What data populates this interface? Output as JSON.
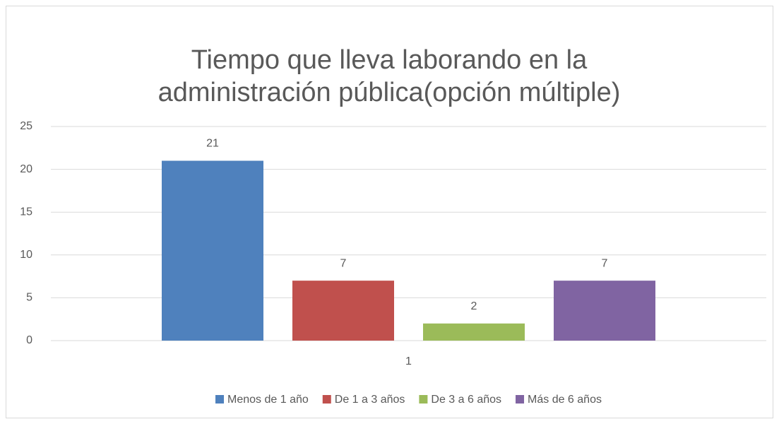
{
  "chart_data": {
    "type": "bar",
    "title": "Tiempo que lleva laborando en la administración pública(opción múltiple)",
    "categories": [
      "1"
    ],
    "series": [
      {
        "name": "Menos de 1 año",
        "color": "#4f81bd",
        "values": [
          21
        ]
      },
      {
        "name": "De 1 a 3 años",
        "color": "#c0504d",
        "values": [
          7
        ]
      },
      {
        "name": "De 3 a 6 años",
        "color": "#9bbb59",
        "values": [
          2
        ]
      },
      {
        "name": "Más de 6 años",
        "color": "#8064a2",
        "values": [
          7
        ]
      }
    ],
    "ylim": [
      0,
      25
    ],
    "yticks": [
      0,
      5,
      10,
      15,
      20,
      25
    ],
    "grid": true,
    "legend": "bottom",
    "data_labels": true
  }
}
